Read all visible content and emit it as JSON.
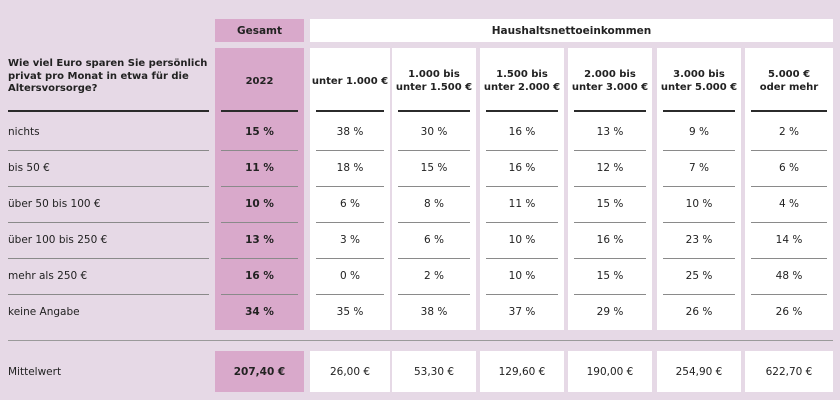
{
  "header": {
    "gesamt": "Gesamt",
    "group": "Haushaltsnettoeinkommen"
  },
  "question": "Wie viel Euro sparen Sie persönlich\nprivat pro Monat in etwa für die\nAltersvorsorge?",
  "columns": [
    "2022",
    "unter 1.000 €",
    "1.000 bis\nunter 1.500 €",
    "1.500 bis\nunter 2.000 €",
    "2.000 bis\nunter 3.000 €",
    "3.000 bis\nunter 5.000 €",
    "5.000 €\noder mehr"
  ],
  "rows": [
    {
      "label": "nichts",
      "values": [
        "15 %",
        "38 %",
        "30 %",
        "16 %",
        "13 %",
        "9 %",
        "2 %"
      ]
    },
    {
      "label": "bis 50 €",
      "values": [
        "11 %",
        "18 %",
        "15 %",
        "16 %",
        "12 %",
        "7 %",
        "6 %"
      ]
    },
    {
      "label": "über 50 bis 100 €",
      "values": [
        "10 %",
        "6 %",
        "8 %",
        "11 %",
        "15 %",
        "10 %",
        "4 %"
      ]
    },
    {
      "label": "über 100 bis 250 €",
      "values": [
        "13 %",
        "3 %",
        "6 %",
        "10 %",
        "16 %",
        "23 %",
        "14 %"
      ]
    },
    {
      "label": "mehr als 250 €",
      "values": [
        "16 %",
        "0 %",
        "2 %",
        "10 %",
        "15 %",
        "25 %",
        "48 %"
      ]
    },
    {
      "label": "keine Angabe",
      "values": [
        "34 %",
        "35 %",
        "38 %",
        "37 %",
        "29 %",
        "26 %",
        "26 %"
      ]
    }
  ],
  "mean": {
    "label": "Mittelwert",
    "values": [
      "207,40 €",
      "26,00 €",
      "53,30 €",
      "129,60 €",
      "190,00 €",
      "254,90 €",
      "622,70 €"
    ]
  },
  "colors": {
    "background": "#e6d9e6",
    "gesamt": "#d9a9cb",
    "cell": "#ffffff"
  }
}
